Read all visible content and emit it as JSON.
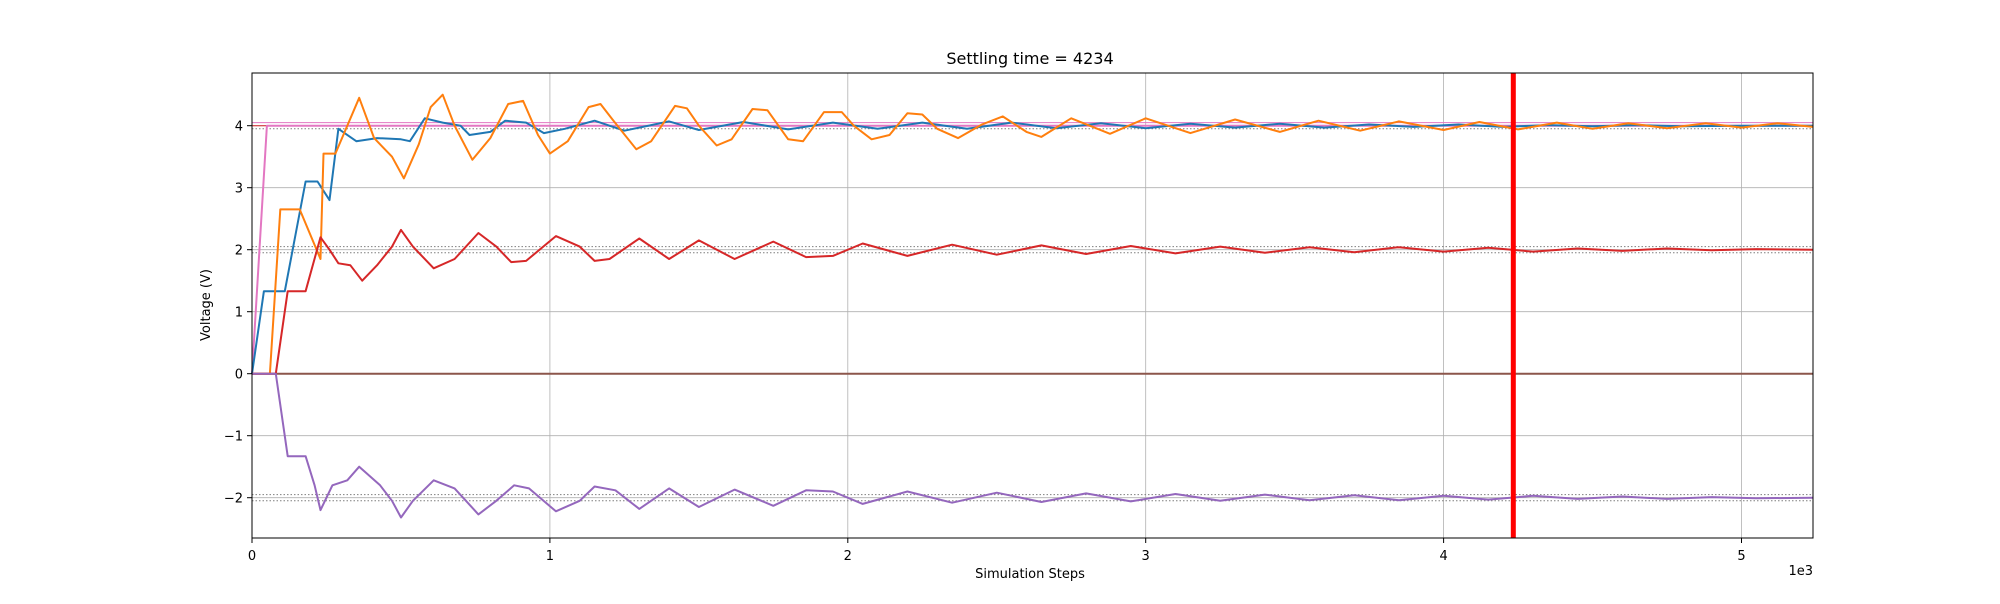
{
  "chart_data": {
    "type": "line",
    "title": "Settling time = 4234",
    "xlabel": "Simulation Steps",
    "ylabel": "Voltage (V)",
    "x_offset_label": "1e3",
    "xlim": [
      0,
      5240
    ],
    "ylim": [
      -2.65,
      4.85
    ],
    "x_ticks": [
      0,
      1000,
      2000,
      3000,
      4000,
      5000
    ],
    "x_tick_labels": [
      "0",
      "1",
      "2",
      "3",
      "4",
      "5"
    ],
    "y_ticks": [
      -2,
      -1,
      0,
      1,
      2,
      3,
      4
    ],
    "y_tick_labels": [
      "−2",
      "−1",
      "0",
      "1",
      "2",
      "3",
      "4"
    ],
    "grid": true,
    "legend": "none",
    "settling_marker": {
      "x": 4234,
      "color": "#ff0000"
    },
    "reference_lines": [
      {
        "y": 4.05,
        "color": "#e377c2",
        "style": "solid"
      },
      {
        "y": 3.95,
        "color": "#7f7f7f",
        "style": "dotted"
      },
      {
        "y": 4.0,
        "color": "#d62728",
        "style": "solid"
      },
      {
        "y": 2.05,
        "color": "#7f7f7f",
        "style": "dotted"
      },
      {
        "y": 1.95,
        "color": "#7f7f7f",
        "style": "dotted"
      },
      {
        "y": -1.95,
        "color": "#7f7f7f",
        "style": "dotted"
      },
      {
        "y": -2.05,
        "color": "#7f7f7f",
        "style": "dotted"
      }
    ],
    "series": [
      {
        "color": "#e377c2",
        "points": [
          [
            0,
            0
          ],
          [
            50,
            4.0
          ],
          [
            5240,
            4.0
          ]
        ]
      },
      {
        "color": "#8c564b",
        "points": [
          [
            0,
            0
          ],
          [
            5240,
            0
          ]
        ]
      },
      {
        "color": "#1f77b4",
        "points": [
          [
            0,
            0
          ],
          [
            40,
            1.33
          ],
          [
            110,
            1.33
          ],
          [
            180,
            3.1
          ],
          [
            220,
            3.1
          ],
          [
            260,
            2.8
          ],
          [
            290,
            3.95
          ],
          [
            350,
            3.75
          ],
          [
            420,
            3.8
          ],
          [
            500,
            3.78
          ],
          [
            530,
            3.75
          ],
          [
            580,
            4.12
          ],
          [
            640,
            4.05
          ],
          [
            700,
            4.0
          ],
          [
            730,
            3.85
          ],
          [
            800,
            3.9
          ],
          [
            850,
            4.08
          ],
          [
            920,
            4.05
          ],
          [
            980,
            3.88
          ],
          [
            1050,
            3.95
          ],
          [
            1150,
            4.08
          ],
          [
            1250,
            3.92
          ],
          [
            1400,
            4.07
          ],
          [
            1500,
            3.93
          ],
          [
            1650,
            4.06
          ],
          [
            1800,
            3.94
          ],
          [
            1950,
            4.05
          ],
          [
            2100,
            3.95
          ],
          [
            2250,
            4.05
          ],
          [
            2400,
            3.95
          ],
          [
            2550,
            4.05
          ],
          [
            2700,
            3.96
          ],
          [
            2850,
            4.04
          ],
          [
            3000,
            3.96
          ],
          [
            3150,
            4.03
          ],
          [
            3300,
            3.97
          ],
          [
            3450,
            4.03
          ],
          [
            3600,
            3.97
          ],
          [
            3750,
            4.02
          ],
          [
            3900,
            3.98
          ],
          [
            4050,
            4.02
          ],
          [
            4200,
            3.98
          ],
          [
            4350,
            4.01
          ],
          [
            4500,
            3.99
          ],
          [
            4650,
            4.01
          ],
          [
            4800,
            3.99
          ],
          [
            5000,
            4.0
          ],
          [
            5240,
            4.0
          ]
        ]
      },
      {
        "color": "#ff7f0e",
        "points": [
          [
            0,
            0
          ],
          [
            60,
            0
          ],
          [
            95,
            2.65
          ],
          [
            160,
            2.65
          ],
          [
            230,
            1.85
          ],
          [
            240,
            3.55
          ],
          [
            280,
            3.55
          ],
          [
            360,
            4.45
          ],
          [
            410,
            3.8
          ],
          [
            470,
            3.5
          ],
          [
            510,
            3.15
          ],
          [
            560,
            3.7
          ],
          [
            600,
            4.3
          ],
          [
            640,
            4.5
          ],
          [
            680,
            4.0
          ],
          [
            740,
            3.45
          ],
          [
            800,
            3.8
          ],
          [
            860,
            4.35
          ],
          [
            910,
            4.4
          ],
          [
            960,
            3.85
          ],
          [
            1000,
            3.55
          ],
          [
            1060,
            3.75
          ],
          [
            1130,
            4.3
          ],
          [
            1170,
            4.35
          ],
          [
            1210,
            4.1
          ],
          [
            1290,
            3.62
          ],
          [
            1340,
            3.75
          ],
          [
            1420,
            4.32
          ],
          [
            1460,
            4.28
          ],
          [
            1500,
            4.0
          ],
          [
            1560,
            3.68
          ],
          [
            1610,
            3.78
          ],
          [
            1680,
            4.27
          ],
          [
            1730,
            4.25
          ],
          [
            1800,
            3.78
          ],
          [
            1850,
            3.75
          ],
          [
            1920,
            4.22
          ],
          [
            1980,
            4.22
          ],
          [
            2020,
            4.0
          ],
          [
            2080,
            3.78
          ],
          [
            2140,
            3.85
          ],
          [
            2200,
            4.2
          ],
          [
            2250,
            4.18
          ],
          [
            2300,
            3.95
          ],
          [
            2370,
            3.8
          ],
          [
            2450,
            4.02
          ],
          [
            2520,
            4.15
          ],
          [
            2600,
            3.9
          ],
          [
            2650,
            3.82
          ],
          [
            2750,
            4.12
          ],
          [
            2880,
            3.87
          ],
          [
            3000,
            4.12
          ],
          [
            3150,
            3.88
          ],
          [
            3300,
            4.1
          ],
          [
            3450,
            3.9
          ],
          [
            3580,
            4.08
          ],
          [
            3720,
            3.92
          ],
          [
            3850,
            4.07
          ],
          [
            4000,
            3.93
          ],
          [
            4120,
            4.06
          ],
          [
            4250,
            3.94
          ],
          [
            4380,
            4.05
          ],
          [
            4500,
            3.95
          ],
          [
            4620,
            4.04
          ],
          [
            4750,
            3.96
          ],
          [
            4880,
            4.04
          ],
          [
            5000,
            3.97
          ],
          [
            5120,
            4.04
          ],
          [
            5240,
            3.98
          ]
        ]
      },
      {
        "color": "#d62728",
        "points": [
          [
            0,
            0
          ],
          [
            80,
            0
          ],
          [
            120,
            1.33
          ],
          [
            180,
            1.33
          ],
          [
            230,
            2.2
          ],
          [
            260,
            2.0
          ],
          [
            290,
            1.78
          ],
          [
            330,
            1.75
          ],
          [
            370,
            1.5
          ],
          [
            420,
            1.75
          ],
          [
            470,
            2.05
          ],
          [
            500,
            2.32
          ],
          [
            540,
            2.05
          ],
          [
            610,
            1.7
          ],
          [
            680,
            1.85
          ],
          [
            760,
            2.27
          ],
          [
            820,
            2.05
          ],
          [
            870,
            1.8
          ],
          [
            920,
            1.82
          ],
          [
            1020,
            2.22
          ],
          [
            1100,
            2.05
          ],
          [
            1150,
            1.82
          ],
          [
            1200,
            1.85
          ],
          [
            1300,
            2.18
          ],
          [
            1400,
            1.85
          ],
          [
            1500,
            2.15
          ],
          [
            1620,
            1.85
          ],
          [
            1750,
            2.13
          ],
          [
            1860,
            1.88
          ],
          [
            1950,
            1.9
          ],
          [
            2050,
            2.1
          ],
          [
            2200,
            1.9
          ],
          [
            2350,
            2.08
          ],
          [
            2500,
            1.92
          ],
          [
            2650,
            2.07
          ],
          [
            2800,
            1.93
          ],
          [
            2950,
            2.06
          ],
          [
            3100,
            1.94
          ],
          [
            3250,
            2.05
          ],
          [
            3400,
            1.95
          ],
          [
            3550,
            2.04
          ],
          [
            3700,
            1.96
          ],
          [
            3850,
            2.04
          ],
          [
            4000,
            1.97
          ],
          [
            4150,
            2.03
          ],
          [
            4300,
            1.97
          ],
          [
            4450,
            2.02
          ],
          [
            4600,
            1.98
          ],
          [
            4750,
            2.02
          ],
          [
            4900,
            1.99
          ],
          [
            5050,
            2.01
          ],
          [
            5240,
            2.0
          ]
        ]
      },
      {
        "color": "#9467bd",
        "points": [
          [
            0,
            0
          ],
          [
            80,
            0
          ],
          [
            120,
            -1.33
          ],
          [
            180,
            -1.33
          ],
          [
            210,
            -1.8
          ],
          [
            230,
            -2.2
          ],
          [
            270,
            -1.8
          ],
          [
            320,
            -1.72
          ],
          [
            360,
            -1.5
          ],
          [
            430,
            -1.8
          ],
          [
            470,
            -2.05
          ],
          [
            500,
            -2.32
          ],
          [
            540,
            -2.05
          ],
          [
            610,
            -1.72
          ],
          [
            680,
            -1.85
          ],
          [
            760,
            -2.27
          ],
          [
            820,
            -2.05
          ],
          [
            880,
            -1.8
          ],
          [
            930,
            -1.85
          ],
          [
            1020,
            -2.22
          ],
          [
            1100,
            -2.05
          ],
          [
            1150,
            -1.82
          ],
          [
            1220,
            -1.88
          ],
          [
            1300,
            -2.18
          ],
          [
            1400,
            -1.85
          ],
          [
            1500,
            -2.15
          ],
          [
            1620,
            -1.87
          ],
          [
            1750,
            -2.13
          ],
          [
            1860,
            -1.88
          ],
          [
            1950,
            -1.9
          ],
          [
            2050,
            -2.1
          ],
          [
            2200,
            -1.9
          ],
          [
            2350,
            -2.08
          ],
          [
            2500,
            -1.92
          ],
          [
            2650,
            -2.07
          ],
          [
            2800,
            -1.93
          ],
          [
            2950,
            -2.06
          ],
          [
            3100,
            -1.94
          ],
          [
            3250,
            -2.05
          ],
          [
            3400,
            -1.95
          ],
          [
            3550,
            -2.04
          ],
          [
            3700,
            -1.96
          ],
          [
            3850,
            -2.04
          ],
          [
            4000,
            -1.97
          ],
          [
            4150,
            -2.03
          ],
          [
            4300,
            -1.97
          ],
          [
            4450,
            -2.02
          ],
          [
            4600,
            -1.98
          ],
          [
            4750,
            -2.02
          ],
          [
            4900,
            -1.99
          ],
          [
            5050,
            -2.01
          ],
          [
            5240,
            -2.0
          ]
        ]
      }
    ]
  }
}
